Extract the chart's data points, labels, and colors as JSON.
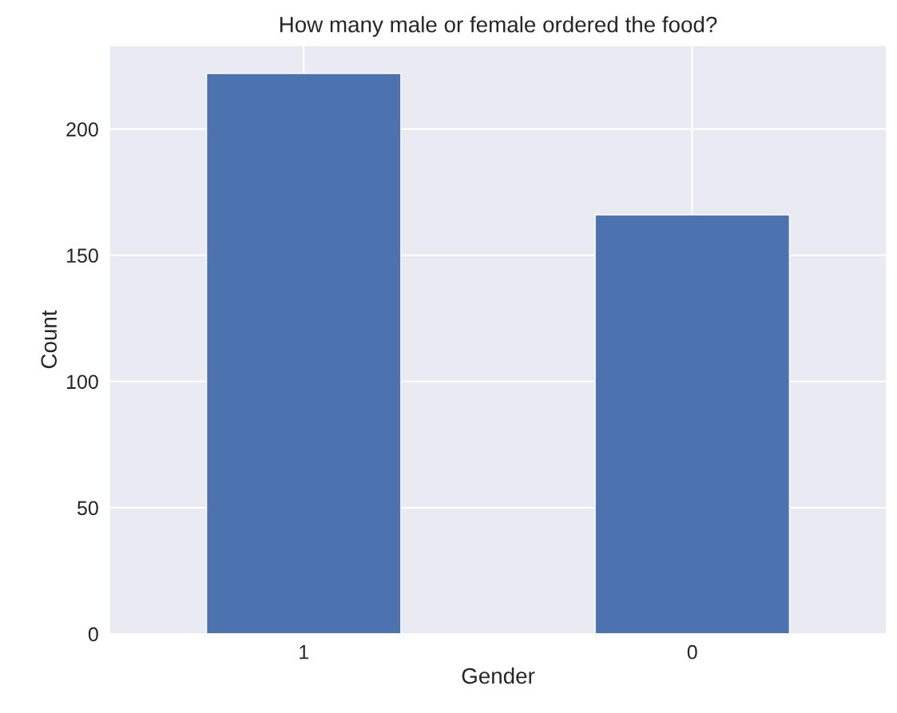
{
  "chart_data": {
    "type": "bar",
    "title": "How many male or female ordered the food?",
    "xlabel": "Gender",
    "ylabel": "Count",
    "categories": [
      "1",
      "0"
    ],
    "values": [
      222,
      166
    ],
    "color": "#4c72b0",
    "ylim": [
      0,
      233.1
    ],
    "yticks": [
      0,
      50,
      100,
      150,
      200
    ],
    "grid": true,
    "legend": false
  }
}
